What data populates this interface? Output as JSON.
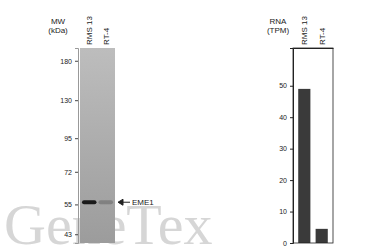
{
  "chart_data": [
    {
      "type": "western_blot",
      "y_label": "MW (kDa)",
      "categories": [
        "RMS 13",
        "RT-4"
      ],
      "ylim": [
        40,
        200
      ],
      "yticks": [
        180,
        130,
        95,
        72,
        55,
        43
      ],
      "log": "y",
      "series": [
        {
          "name": "EME1",
          "values": [
            56,
            56
          ],
          "intensity": [
            1,
            0.25
          ]
        }
      ]
    },
    {
      "type": "bar",
      "y_label": "RNA (TPM)",
      "categories": [
        "RMS 13",
        "RT-4"
      ],
      "values": [
        49,
        4.5
      ],
      "color": "#3a3a3a",
      "ylim": [
        0,
        62
      ],
      "yticks": [
        0,
        10,
        20,
        30,
        40,
        50
      ],
      "grid": false
    }
  ],
  "watermark": "GeneTex"
}
